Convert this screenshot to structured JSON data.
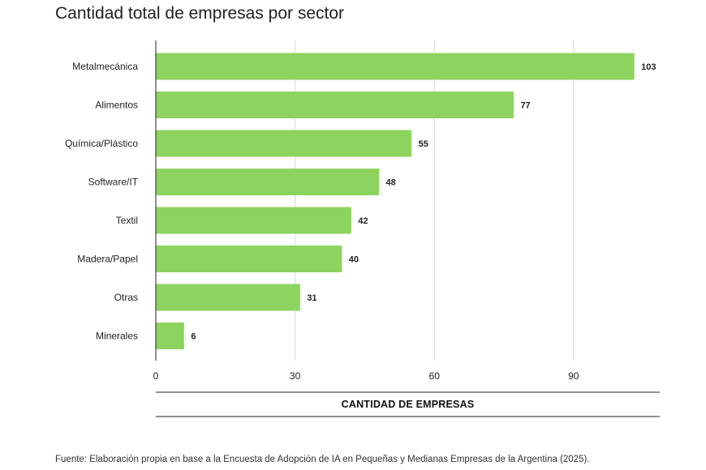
{
  "colors": {
    "bar": "#8dd35f",
    "gridline": "#d9d9d9",
    "axis_line": "#222222"
  },
  "source_note": "Fuente: Elaboración propia en base a la Encuesta de Adopción de IA en Pequeñas y Medianas Empresas de la Argentina (2025).",
  "chart_data": {
    "type": "bar",
    "orientation": "horizontal",
    "title": "Cantidad total de empresas por sector",
    "xlabel": "CANTIDAD DE EMPRESAS",
    "ylabel": "",
    "categories": [
      "Metalmecánica",
      "Alimentos",
      "Química/Plástico",
      "Software/IT",
      "Textil",
      "Madera/Papel",
      "Otras",
      "Minerales"
    ],
    "values": [
      103,
      77,
      55,
      48,
      42,
      40,
      31,
      6
    ],
    "xlim": [
      0,
      109
    ],
    "xticks": [
      0,
      30,
      60,
      90
    ],
    "grid": true,
    "data_labels": true,
    "legend": "none"
  }
}
